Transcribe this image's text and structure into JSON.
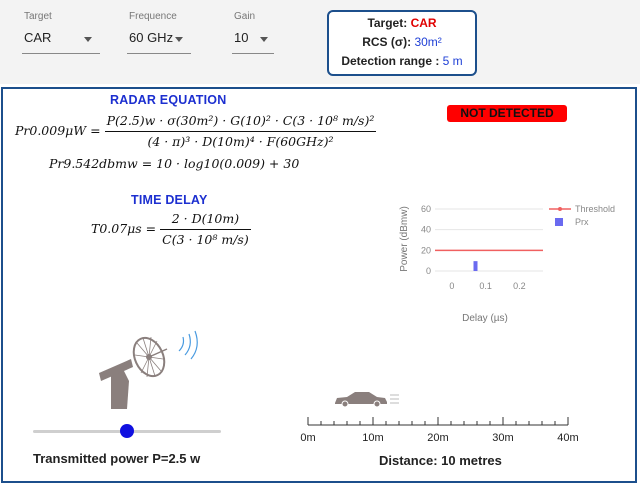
{
  "selects": {
    "target": {
      "label": "Target",
      "value": "CAR"
    },
    "frequence": {
      "label": "Frequence",
      "value": "60 GHz"
    },
    "gain": {
      "label": "Gain",
      "value": "10"
    }
  },
  "info": {
    "target_label": "Target:",
    "target_value": "CAR",
    "rcs_label": "RCS (σ):",
    "rcs_value": "30m²",
    "range_label": "Detection range :",
    "range_value": "5 m"
  },
  "radar_equation": {
    "heading": "RADAR EQUATION",
    "lhs": "Pr0.009μW =",
    "numerator": "P(2.5)w · σ(30m²) · G(10)² · C(3 · 10⁸ m/s)²",
    "denominator": "(4 · π)³ · D(10m)⁴ · F(60GHz)²",
    "dbm_line": "Pr9.542dbmw = 10 · log10(0.009) + 30"
  },
  "time_delay": {
    "heading": "TIME DELAY",
    "lhs": "T0.07μs =",
    "numerator": "2 · D(10m)",
    "denominator": "C(3 · 10⁸ m/s)"
  },
  "status": {
    "badge": "NOT DETECTED",
    "color": "#ff0000"
  },
  "chart_data": {
    "type": "bar",
    "xlabel": "Delay (µs)",
    "ylabel": "Power (dBmw)",
    "xlim": [
      -0.05,
      0.27
    ],
    "ylim": [
      0,
      60
    ],
    "xticks": [
      "0",
      "0.1",
      "0.2"
    ],
    "yticks": [
      "0",
      "20",
      "40",
      "60"
    ],
    "legend_position": "top-right",
    "series": [
      {
        "name": "Threshold",
        "type": "line",
        "color": "#f06060",
        "x": [
          -0.05,
          0.27
        ],
        "y": [
          20,
          20
        ]
      },
      {
        "name": "Prx",
        "type": "bar",
        "color": "#6a6af0",
        "x": [
          0.07
        ],
        "y": [
          9.54
        ]
      }
    ]
  },
  "transmitter": {
    "caption": "Transmitted power P=2.5 w",
    "slider_fraction": 0.5
  },
  "distance": {
    "caption": "Distance: 10 metres",
    "scale_labels": [
      "0m",
      "10m",
      "20m",
      "30m",
      "40m"
    ],
    "car_position_m": 10
  },
  "icons": {
    "radar": "radar-dish-icon",
    "car": "car-icon",
    "waves": "signal-waves-icon"
  }
}
